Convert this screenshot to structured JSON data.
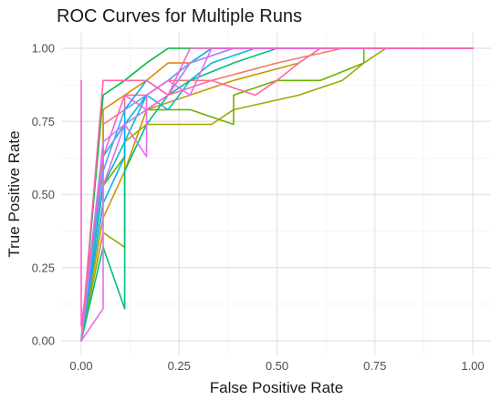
{
  "chart_data": {
    "type": "line",
    "title": "ROC Curves for Multiple Runs",
    "xlabel": "False Positive Rate",
    "ylabel": "True Positive Rate",
    "xlim": [
      0,
      1
    ],
    "ylim": [
      0,
      1
    ],
    "xticks": [
      0,
      0.25,
      0.5,
      0.75,
      1
    ],
    "yticks": [
      0,
      0.25,
      0.5,
      0.75,
      1
    ],
    "xtick_labels": [
      "0.00",
      "0.25",
      "0.50",
      "0.75",
      "1.00"
    ],
    "ytick_labels": [
      "0.00",
      "0.25",
      "0.50",
      "0.75",
      "1.00"
    ],
    "grid": true,
    "legend": "none",
    "series": [
      {
        "color": "#F8766D",
        "points": [
          [
            0,
            0
          ],
          [
            0.056,
            0.58
          ],
          [
            0.056,
            0.74
          ],
          [
            0.111,
            0.79
          ],
          [
            0.111,
            0.84
          ],
          [
            0.167,
            0.84
          ],
          [
            0.222,
            0.89
          ],
          [
            0.333,
            0.89
          ],
          [
            0.5,
            0.95
          ],
          [
            0.667,
            1.0
          ],
          [
            1,
            1
          ]
        ]
      },
      {
        "color": "#E58700",
        "points": [
          [
            0,
            0
          ],
          [
            0.056,
            0.47
          ],
          [
            0.056,
            0.79
          ],
          [
            0.111,
            0.84
          ],
          [
            0.167,
            0.89
          ],
          [
            0.222,
            0.95
          ],
          [
            0.278,
            0.95
          ],
          [
            0.333,
            1.0
          ],
          [
            1,
            1
          ]
        ]
      },
      {
        "color": "#C99800",
        "points": [
          [
            0,
            0
          ],
          [
            0.056,
            0.42
          ],
          [
            0.111,
            0.58
          ],
          [
            0.167,
            0.79
          ],
          [
            0.278,
            0.84
          ],
          [
            0.389,
            0.89
          ],
          [
            0.556,
            0.95
          ],
          [
            0.611,
            1.0
          ],
          [
            1,
            1
          ]
        ]
      },
      {
        "color": "#A3A500",
        "points": [
          [
            0,
            0
          ],
          [
            0.056,
            0.37
          ],
          [
            0.111,
            0.32
          ],
          [
            0.111,
            0.68
          ],
          [
            0.167,
            0.74
          ],
          [
            0.222,
            0.74
          ],
          [
            0.333,
            0.74
          ],
          [
            0.389,
            0.79
          ],
          [
            0.556,
            0.84
          ],
          [
            0.667,
            0.89
          ],
          [
            0.722,
            0.95
          ],
          [
            0.778,
            1.0
          ],
          [
            1,
            1
          ]
        ]
      },
      {
        "color": "#6BB100",
        "points": [
          [
            0,
            0
          ],
          [
            0.056,
            0.53
          ],
          [
            0.111,
            0.63
          ],
          [
            0.111,
            0.74
          ],
          [
            0.167,
            0.79
          ],
          [
            0.278,
            0.79
          ],
          [
            0.389,
            0.74
          ],
          [
            0.389,
            0.84
          ],
          [
            0.5,
            0.89
          ],
          [
            0.611,
            0.89
          ],
          [
            0.722,
            0.95
          ],
          [
            0.722,
            1.0
          ],
          [
            1,
            1
          ]
        ]
      },
      {
        "color": "#00BA38",
        "points": [
          [
            0,
            0
          ],
          [
            0.056,
            0.84
          ],
          [
            0.111,
            0.89
          ],
          [
            0.167,
            0.95
          ],
          [
            0.222,
            1.0
          ],
          [
            1,
            1
          ]
        ]
      },
      {
        "color": "#00BF7D",
        "points": [
          [
            0,
            0
          ],
          [
            0.056,
            0.32
          ],
          [
            0.111,
            0.11
          ],
          [
            0.111,
            0.58
          ],
          [
            0.167,
            0.74
          ],
          [
            0.222,
            0.84
          ],
          [
            0.278,
            0.89
          ],
          [
            0.389,
            0.95
          ],
          [
            0.5,
            1.0
          ],
          [
            1,
            1
          ]
        ]
      },
      {
        "color": "#00C0AF",
        "points": [
          [
            0,
            0
          ],
          [
            0.056,
            0.53
          ],
          [
            0.111,
            0.68
          ],
          [
            0.167,
            0.84
          ],
          [
            0.222,
            0.89
          ],
          [
            0.278,
            0.95
          ],
          [
            0.389,
            1.0
          ],
          [
            1,
            1
          ]
        ]
      },
      {
        "color": "#00BCD8",
        "points": [
          [
            0,
            0
          ],
          [
            0.056,
            0.63
          ],
          [
            0.111,
            0.74
          ],
          [
            0.167,
            0.84
          ],
          [
            0.222,
            0.79
          ],
          [
            0.278,
            0.89
          ],
          [
            0.333,
            0.95
          ],
          [
            0.444,
            1.0
          ],
          [
            1,
            1
          ]
        ]
      },
      {
        "color": "#00B0F6",
        "points": [
          [
            0,
            0
          ],
          [
            0.056,
            0.47
          ],
          [
            0.111,
            0.63
          ],
          [
            0.111,
            0.79
          ],
          [
            0.167,
            0.89
          ],
          [
            0.222,
            0.84
          ],
          [
            0.278,
            0.95
          ],
          [
            0.333,
            1.0
          ],
          [
            1,
            1
          ]
        ]
      },
      {
        "color": "#619CFF",
        "points": [
          [
            0,
            0
          ],
          [
            0.056,
            0.58
          ],
          [
            0.111,
            0.79
          ],
          [
            0.167,
            0.84
          ],
          [
            0.222,
            0.89
          ],
          [
            0.278,
            0.95
          ],
          [
            0.389,
            1.0
          ],
          [
            1,
            1
          ]
        ]
      },
      {
        "color": "#B983FF",
        "points": [
          [
            0,
            0
          ],
          [
            0.056,
            0.68
          ],
          [
            0.111,
            0.74
          ],
          [
            0.167,
            0.79
          ],
          [
            0.222,
            0.84
          ],
          [
            0.278,
            0.95
          ],
          [
            0.389,
            1.0
          ],
          [
            1,
            1
          ]
        ]
      },
      {
        "color": "#E76BF3",
        "points": [
          [
            0,
            0
          ],
          [
            0.056,
            0.11
          ],
          [
            0.056,
            0.53
          ],
          [
            0.111,
            0.74
          ],
          [
            0.167,
            0.63
          ],
          [
            0.167,
            0.84
          ],
          [
            0.222,
            0.89
          ],
          [
            0.278,
            0.84
          ],
          [
            0.333,
            1.0
          ],
          [
            1,
            1
          ]
        ]
      },
      {
        "color": "#FD61D1",
        "points": [
          [
            0,
            0.89
          ],
          [
            0,
            0.05
          ],
          [
            0.056,
            0.63
          ],
          [
            0.111,
            0.84
          ],
          [
            0.167,
            0.79
          ],
          [
            0.222,
            0.84
          ],
          [
            0.278,
            1.0
          ],
          [
            1,
            1
          ]
        ]
      },
      {
        "color": "#FF67A4",
        "points": [
          [
            0,
            0
          ],
          [
            0.056,
            0.89
          ],
          [
            0.167,
            0.89
          ],
          [
            0.222,
            0.84
          ],
          [
            0.333,
            0.89
          ],
          [
            0.444,
            0.84
          ],
          [
            0.5,
            0.89
          ],
          [
            0.556,
            0.95
          ],
          [
            0.611,
            1.0
          ],
          [
            1,
            1
          ]
        ]
      }
    ]
  }
}
